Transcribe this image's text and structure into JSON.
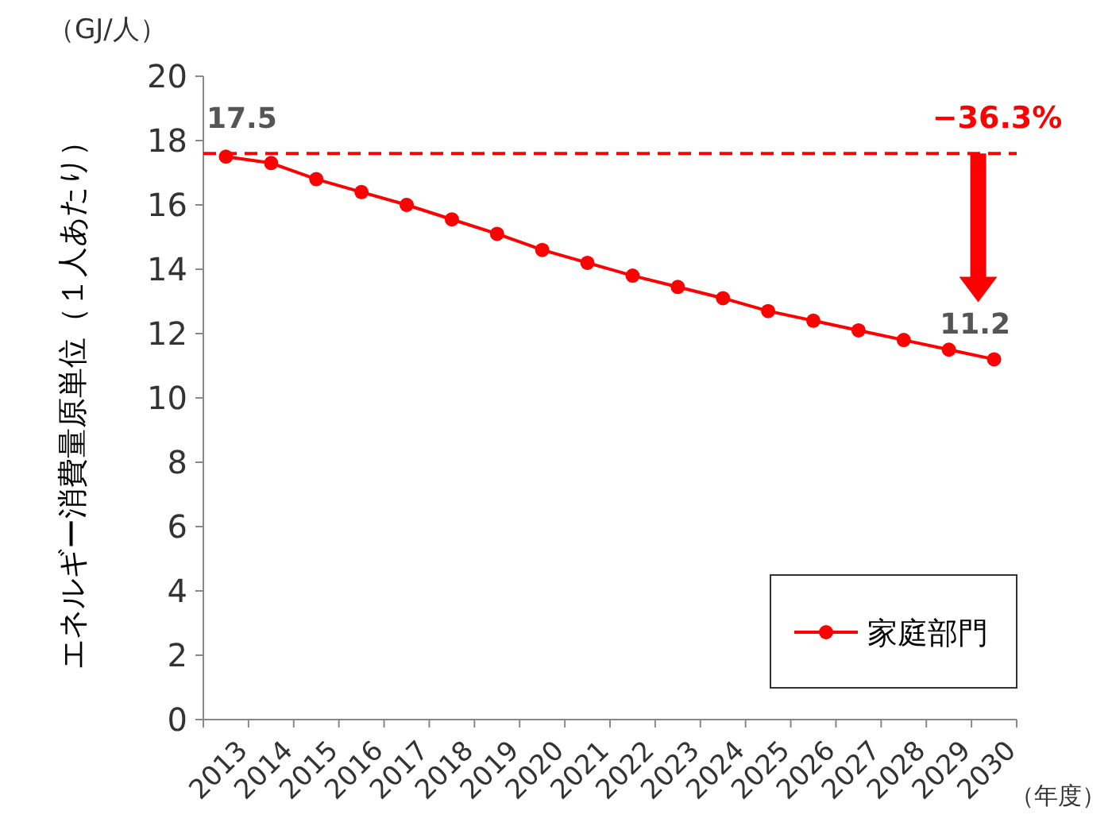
{
  "chart_data": {
    "type": "line",
    "ylabel": "エネルギー消費量原単位（１人あたり）",
    "xlabel": "（年度）",
    "categories": [
      "2013",
      "2014",
      "2015",
      "2016",
      "2017",
      "2018",
      "2019",
      "2020",
      "2021",
      "2022",
      "2023",
      "2024",
      "2025",
      "2026",
      "2027",
      "2028",
      "2029",
      "2030"
    ],
    "series": [
      {
        "name": "家庭部門",
        "color": "#ff0000",
        "values": [
          17.5,
          17.3,
          16.8,
          16.4,
          16.0,
          15.55,
          15.1,
          14.6,
          14.2,
          13.8,
          13.45,
          13.1,
          12.7,
          12.4,
          12.1,
          11.8,
          11.5,
          11.2
        ],
        "value_labels": [
          "17.5",
          null,
          null,
          null,
          null,
          null,
          null,
          null,
          null,
          null,
          null,
          null,
          null,
          null,
          null,
          null,
          null,
          "11.2"
        ]
      }
    ],
    "ylim": [
      0,
      20
    ],
    "yticks": [
      0,
      2,
      4,
      6,
      8,
      10,
      12,
      14,
      16,
      18,
      20
    ],
    "ref_lines": [
      {
        "axis": "y",
        "value": 17.6,
        "color": "#ff0000",
        "line_style": "dashed"
      }
    ],
    "annotations": [
      "（GJ/人）",
      {
        "text": "−36.3%",
        "x": "2030",
        "y": 17.6
      }
    ],
    "marker": "circle",
    "line_style": "solid",
    "legend": "bottom right",
    "grid": false
  }
}
